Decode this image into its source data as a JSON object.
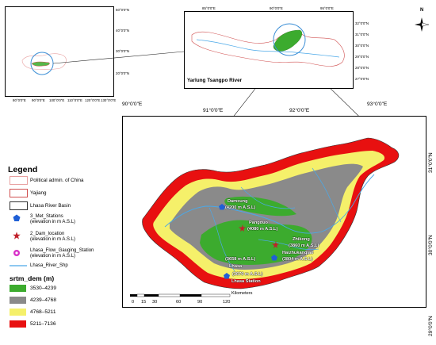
{
  "inset_world": {
    "x_ticks": [
      "80°0'0\"E",
      "90°0'0\"E",
      "100°0'0\"E",
      "110°0'0\"E",
      "120°0'0\"E",
      "130°0'0\"E",
      "140°0'0\"E"
    ],
    "y_ticks": [
      "50°0'0\"N",
      "40°0'0\"N",
      "30°0'0\"N",
      "20°0'0\"N"
    ]
  },
  "inset_yajiang": {
    "x_ticks": [
      "85°0'0\"E",
      "90°0'0\"E",
      "95°0'0\"E"
    ],
    "y_ticks": [
      "32°0'0\"N",
      "31°0'0\"N",
      "30°0'0\"N",
      "29°0'0\"N",
      "28°0'0\"N",
      "27°0'0\"N"
    ],
    "river_label": "Yarlung Tsangpo River"
  },
  "main_map": {
    "x_ticks": [
      "90°0'0\"E",
      "91°0'0\"E",
      "92°0'0\"E",
      "93°0'0\"E"
    ],
    "y_ticks": [
      "31°0'0\"N",
      "30°0'0\"N",
      "29°0'0\"N"
    ],
    "stations": [
      {
        "name": "Damxung",
        "elevation": "(4200 m A.S.L)"
      },
      {
        "name": "Pangduo",
        "elevation": "(4080 m A.S.L)"
      },
      {
        "name": "Zhikong",
        "elevation": "(3860 m A.S.L)"
      },
      {
        "name": "Haizhukanqiao",
        "elevation": "(3804 m A.S.L)"
      },
      {
        "name": "",
        "elevation": "(3658 m A.S.L)"
      },
      {
        "name": "Lhasa",
        "elevation": "(3670 m A.S.L)"
      },
      {
        "name": "Lhasa Station",
        "elevation": ""
      }
    ],
    "scalebar": {
      "unit": "Kilometers",
      "ticks": [
        "0",
        "15",
        "30",
        "60",
        "90",
        "120"
      ]
    }
  },
  "north_arrow": {
    "letter": "N"
  },
  "legend": {
    "title": "Legend",
    "items": [
      {
        "label": "Political admin. of China",
        "symbol": "box-outline",
        "color": "#e8a0a0"
      },
      {
        "label": "Yajiang",
        "symbol": "box-outline",
        "color": "#d05050"
      },
      {
        "label": "Lhasa River Basin",
        "symbol": "box-outline",
        "color": "#333333"
      },
      {
        "label": "3_Met_Stations",
        "sublabel": "(elevation in m A.S.L)",
        "symbol": "pentagon",
        "color": "#1f5fd6"
      },
      {
        "label": "2_Dam_location",
        "sublabel": "(elevation in m A.S.L)",
        "symbol": "star",
        "color": "#c0202a"
      },
      {
        "label": "Lhasa_Flow_Gauging_Station",
        "sublabel": "(elevation in m A.S.L)",
        "symbol": "circle",
        "color": "#d830c8"
      },
      {
        "label": "Lhasa_River_Shp",
        "symbol": "line",
        "color": "#4aa8e8"
      }
    ],
    "dem_title": "srtm_dem (m)",
    "dem_classes": [
      {
        "label": "3530–4239",
        "color": "#3cab2e"
      },
      {
        "label": "4239–4768",
        "color": "#8a8a8a"
      },
      {
        "label": "4768–5211",
        "color": "#f5f06a"
      },
      {
        "label": "5211–7136",
        "color": "#e81010"
      }
    ]
  }
}
